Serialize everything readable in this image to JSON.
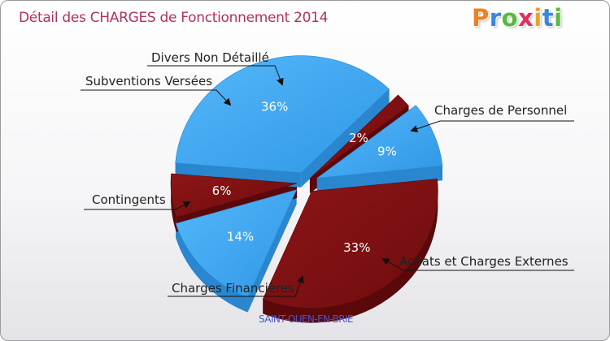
{
  "header": {
    "title": "Détail des CHARGES de Fonctionnement 2014",
    "logo": "Proxiti",
    "logo_colors": [
      "#f08020",
      "#3a86d8",
      "#59b83e",
      "#e03060",
      "#f0a020",
      "#3a86d8",
      "#59b83e"
    ]
  },
  "footer": {
    "place": "SAINT-OUEN-EN-BRIE"
  },
  "colors": {
    "blue": "#3fa9f2",
    "red": "#8b1416"
  },
  "chart_data": {
    "type": "pie",
    "title": "Détail des CHARGES de Fonctionnement 2014",
    "exploded": true,
    "three_d": true,
    "slices": [
      {
        "label": "Charges de Personnel",
        "value": 33,
        "pct_label": "33%",
        "color": "red"
      },
      {
        "label": "Achats et Charges Externes",
        "value": 14,
        "pct_label": "14%",
        "color": "blue"
      },
      {
        "label": "Charges Financières",
        "value": 6,
        "pct_label": "6%",
        "color": "red"
      },
      {
        "label": "Contingents",
        "value": 36,
        "pct_label": "36%",
        "color": "blue"
      },
      {
        "label": "Subventions Versées",
        "value": 2,
        "pct_label": "2%",
        "color": "red"
      },
      {
        "label": "Divers Non Détaillé",
        "value": 9,
        "pct_label": "9%",
        "color": "blue"
      }
    ]
  }
}
